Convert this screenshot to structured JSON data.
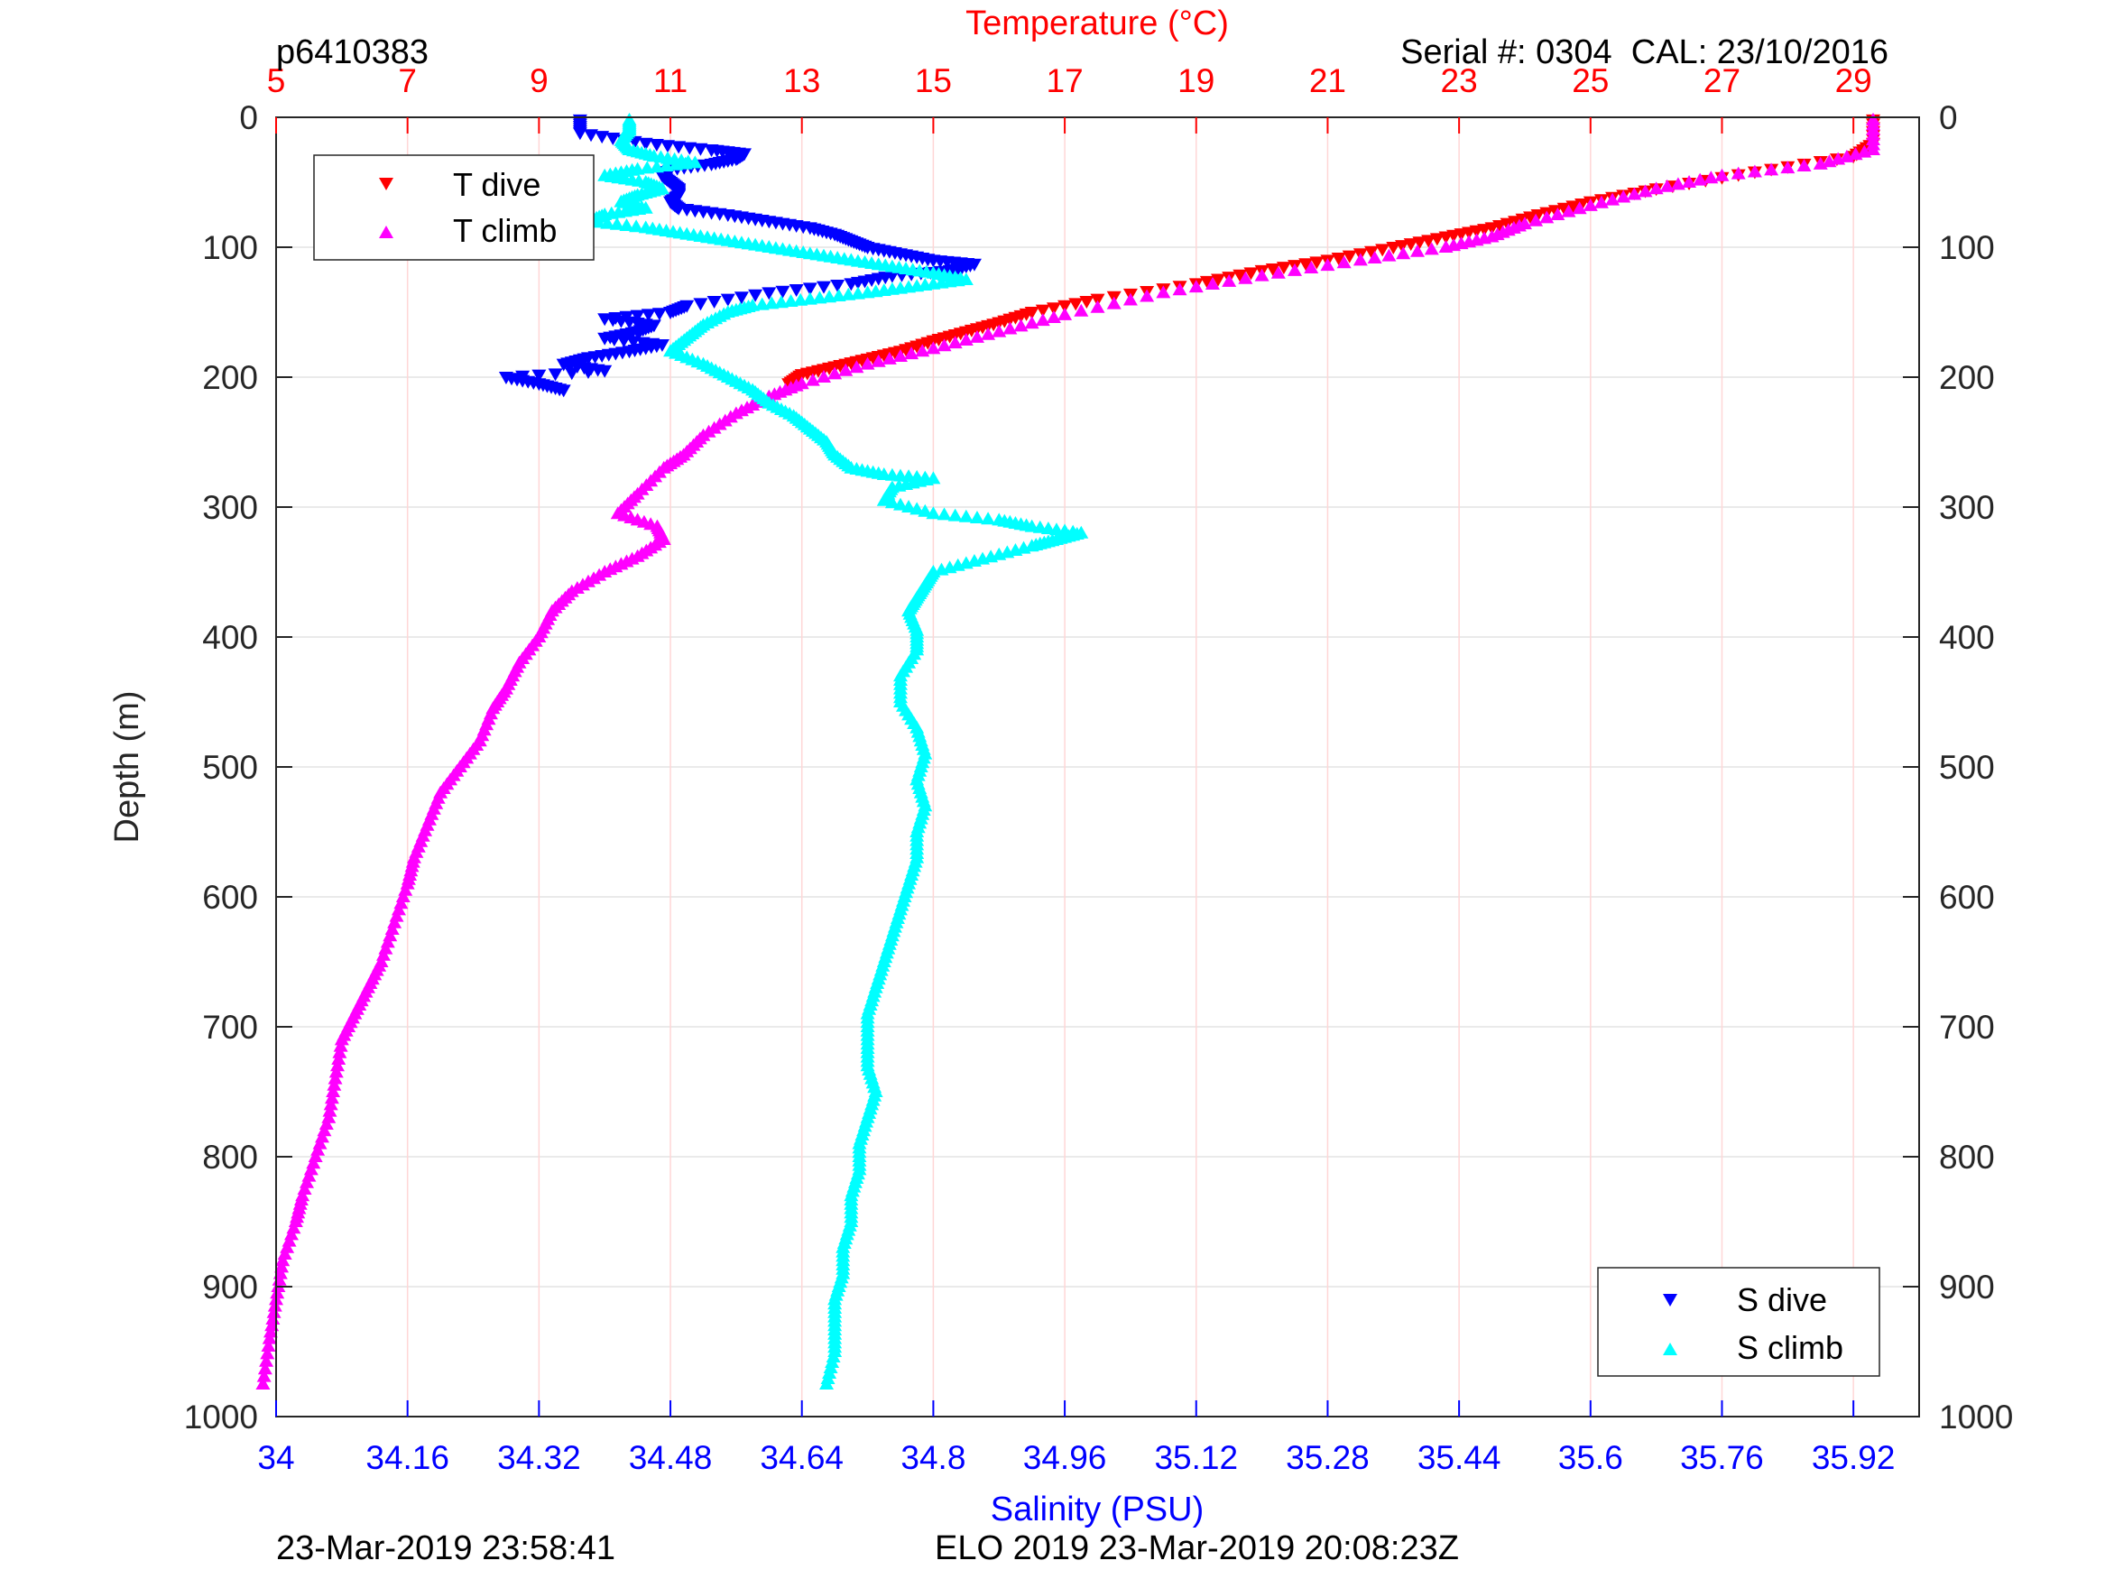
{
  "header": {
    "profile_id": "p6410383",
    "serial": "Serial #: 0304  CAL: 23/10/2016"
  },
  "footer": {
    "plot_time": "23-Mar-2019 23:58:41",
    "mission": "ELO 2019 23-Mar-2019 20:08:23Z"
  },
  "colors": {
    "t_dive": "#ff0000",
    "t_climb": "#ff00ff",
    "s_dive": "#0000ff",
    "s_climb": "#00ffff",
    "temperature_axis": "#ff0000",
    "salinity_axis": "#0000ff"
  },
  "chart_data": {
    "type": "scatter",
    "ylabel": "Depth (m)",
    "x_top_label": "Temperature (°C)",
    "x_bottom_label": "Salinity (PSU)",
    "ylim": [
      0,
      1000
    ],
    "y_reversed": true,
    "y_ticks": [
      0,
      100,
      200,
      300,
      400,
      500,
      600,
      700,
      800,
      900,
      1000
    ],
    "x_top_lim": [
      5,
      30
    ],
    "x_top_ticks": [
      5,
      7,
      9,
      11,
      13,
      15,
      17,
      19,
      21,
      23,
      25,
      27,
      29
    ],
    "x_bottom_lim": [
      34,
      36
    ],
    "x_bottom_ticks": [
      "34",
      "34.16",
      "34.32",
      "34.48",
      "34.64",
      "34.8",
      "34.96",
      "35.12",
      "35.28",
      "35.44",
      "35.6",
      "35.76",
      "35.92"
    ],
    "grid": true,
    "legends": [
      {
        "placement": "top-left",
        "entries": [
          "T dive",
          "T climb"
        ]
      },
      {
        "placement": "bottom-right",
        "entries": [
          "S dive",
          "S climb"
        ]
      }
    ],
    "series": [
      {
        "name": "T dive",
        "axis": "temperature",
        "marker": "triangle-down",
        "points": [
          [
            29.3,
            2
          ],
          [
            29.3,
            20
          ],
          [
            29.0,
            30
          ],
          [
            27.5,
            42
          ],
          [
            26.0,
            55
          ],
          [
            25.0,
            65
          ],
          [
            24.2,
            75
          ],
          [
            23.5,
            85
          ],
          [
            22.8,
            92
          ],
          [
            22.0,
            100
          ],
          [
            21.0,
            110
          ],
          [
            20.0,
            118
          ],
          [
            19.0,
            128
          ],
          [
            17.5,
            140
          ],
          [
            16.5,
            150
          ],
          [
            16.0,
            158
          ],
          [
            15.5,
            165
          ],
          [
            15.0,
            172
          ],
          [
            14.5,
            180
          ],
          [
            14.0,
            186
          ],
          [
            13.5,
            192
          ],
          [
            13.0,
            198
          ],
          [
            12.8,
            205
          ]
        ]
      },
      {
        "name": "T climb",
        "axis": "temperature",
        "marker": "triangle-up",
        "points": [
          [
            29.3,
            2
          ],
          [
            29.3,
            25
          ],
          [
            28.5,
            36
          ],
          [
            27.0,
            45
          ],
          [
            26.0,
            55
          ],
          [
            25.0,
            68
          ],
          [
            24.0,
            82
          ],
          [
            23.5,
            92
          ],
          [
            22.8,
            100
          ],
          [
            21.5,
            110
          ],
          [
            20.0,
            122
          ],
          [
            18.5,
            135
          ],
          [
            17.0,
            152
          ],
          [
            16.0,
            165
          ],
          [
            15.0,
            178
          ],
          [
            14.0,
            190
          ],
          [
            13.0,
            205
          ],
          [
            12.5,
            215
          ],
          [
            12.0,
            228
          ],
          [
            11.5,
            245
          ],
          [
            11.2,
            260
          ],
          [
            10.9,
            270
          ],
          [
            10.5,
            290
          ],
          [
            10.2,
            305
          ],
          [
            10.8,
            315
          ],
          [
            10.9,
            325
          ],
          [
            10.5,
            338
          ],
          [
            10.0,
            350
          ],
          [
            9.5,
            365
          ],
          [
            9.2,
            380
          ],
          [
            9.0,
            400
          ],
          [
            8.7,
            420
          ],
          [
            8.5,
            440
          ],
          [
            8.3,
            455
          ],
          [
            8.1,
            480
          ],
          [
            7.8,
            500
          ],
          [
            7.5,
            520
          ],
          [
            7.3,
            545
          ],
          [
            7.1,
            570
          ],
          [
            7.0,
            590
          ],
          [
            6.8,
            620
          ],
          [
            6.6,
            650
          ],
          [
            6.4,
            670
          ],
          [
            6.2,
            690
          ],
          [
            6.0,
            710
          ],
          [
            5.9,
            740
          ],
          [
            5.8,
            770
          ],
          [
            5.6,
            800
          ],
          [
            5.4,
            830
          ],
          [
            5.3,
            850
          ],
          [
            5.1,
            880
          ],
          [
            5.0,
            910
          ],
          [
            4.9,
            940
          ],
          [
            4.8,
            975
          ]
        ]
      },
      {
        "name": "S dive",
        "axis": "salinity",
        "marker": "triangle-down",
        "points": [
          [
            34.37,
            2
          ],
          [
            34.37,
            12
          ],
          [
            34.45,
            20
          ],
          [
            34.53,
            25
          ],
          [
            34.57,
            28
          ],
          [
            34.56,
            32
          ],
          [
            34.53,
            36
          ],
          [
            34.48,
            40
          ],
          [
            34.47,
            45
          ],
          [
            34.48,
            50
          ],
          [
            34.49,
            55
          ],
          [
            34.49,
            60
          ],
          [
            34.48,
            65
          ],
          [
            34.49,
            70
          ],
          [
            34.55,
            75
          ],
          [
            34.6,
            80
          ],
          [
            34.65,
            85
          ],
          [
            34.68,
            90
          ],
          [
            34.7,
            95
          ],
          [
            34.72,
            100
          ],
          [
            34.76,
            105
          ],
          [
            34.8,
            110
          ],
          [
            34.85,
            113
          ],
          [
            34.82,
            118
          ],
          [
            34.75,
            122
          ],
          [
            34.7,
            128
          ],
          [
            34.6,
            135
          ],
          [
            34.5,
            145
          ],
          [
            34.48,
            150
          ],
          [
            34.4,
            155
          ],
          [
            34.46,
            160
          ],
          [
            34.44,
            165
          ],
          [
            34.4,
            170
          ],
          [
            34.47,
            175
          ],
          [
            34.43,
            180
          ],
          [
            34.38,
            185
          ],
          [
            34.35,
            190
          ],
          [
            34.4,
            195
          ],
          [
            34.28,
            200
          ],
          [
            34.32,
            205
          ],
          [
            34.35,
            210
          ]
        ]
      },
      {
        "name": "S climb",
        "axis": "salinity",
        "marker": "triangle-up",
        "points": [
          [
            34.43,
            2
          ],
          [
            34.43,
            10
          ],
          [
            34.42,
            18
          ],
          [
            34.43,
            25
          ],
          [
            34.46,
            30
          ],
          [
            34.51,
            35
          ],
          [
            34.44,
            40
          ],
          [
            34.4,
            45
          ],
          [
            34.45,
            50
          ],
          [
            34.47,
            55
          ],
          [
            34.44,
            60
          ],
          [
            34.42,
            65
          ],
          [
            34.45,
            70
          ],
          [
            34.4,
            75
          ],
          [
            34.38,
            80
          ],
          [
            34.45,
            85
          ],
          [
            34.5,
            90
          ],
          [
            34.55,
            95
          ],
          [
            34.6,
            100
          ],
          [
            34.65,
            105
          ],
          [
            34.7,
            110
          ],
          [
            34.75,
            115
          ],
          [
            34.8,
            120
          ],
          [
            34.84,
            125
          ],
          [
            34.78,
            130
          ],
          [
            34.72,
            135
          ],
          [
            34.65,
            140
          ],
          [
            34.58,
            145
          ],
          [
            34.55,
            150
          ],
          [
            34.52,
            160
          ],
          [
            34.5,
            170
          ],
          [
            34.48,
            180
          ],
          [
            34.52,
            190
          ],
          [
            34.55,
            200
          ],
          [
            34.58,
            210
          ],
          [
            34.6,
            220
          ],
          [
            34.63,
            230
          ],
          [
            34.65,
            240
          ],
          [
            34.67,
            250
          ],
          [
            34.68,
            260
          ],
          [
            34.7,
            270
          ],
          [
            34.74,
            275
          ],
          [
            34.8,
            278
          ],
          [
            34.75,
            285
          ],
          [
            34.74,
            295
          ],
          [
            34.8,
            305
          ],
          [
            34.88,
            310
          ],
          [
            34.92,
            315
          ],
          [
            34.98,
            320
          ],
          [
            34.95,
            325
          ],
          [
            34.92,
            330
          ],
          [
            34.86,
            340
          ],
          [
            34.8,
            350
          ],
          [
            34.79,
            360
          ],
          [
            34.78,
            370
          ],
          [
            34.77,
            380
          ],
          [
            34.78,
            395
          ],
          [
            34.78,
            410
          ],
          [
            34.76,
            430
          ],
          [
            34.76,
            450
          ],
          [
            34.78,
            470
          ],
          [
            34.79,
            490
          ],
          [
            34.78,
            510
          ],
          [
            34.79,
            530
          ],
          [
            34.78,
            550
          ],
          [
            34.78,
            570
          ],
          [
            34.77,
            590
          ],
          [
            34.76,
            610
          ],
          [
            34.75,
            630
          ],
          [
            34.74,
            650
          ],
          [
            34.73,
            670
          ],
          [
            34.72,
            690
          ],
          [
            34.72,
            710
          ],
          [
            34.72,
            730
          ],
          [
            34.73,
            750
          ],
          [
            34.72,
            770
          ],
          [
            34.71,
            790
          ],
          [
            34.71,
            810
          ],
          [
            34.7,
            830
          ],
          [
            34.7,
            850
          ],
          [
            34.69,
            870
          ],
          [
            34.69,
            890
          ],
          [
            34.68,
            910
          ],
          [
            34.68,
            930
          ],
          [
            34.68,
            950
          ],
          [
            34.67,
            975
          ]
        ]
      }
    ]
  }
}
